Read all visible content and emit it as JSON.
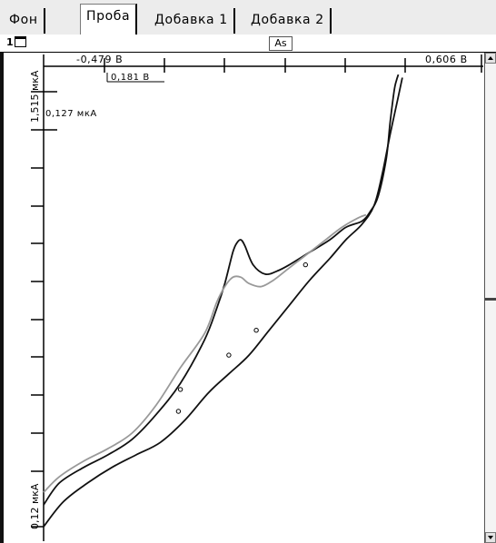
{
  "tabs": [
    {
      "label": "Фон",
      "active": false
    },
    {
      "label": "Проба",
      "active": true
    },
    {
      "label": "Добавка 1",
      "active": false
    },
    {
      "label": "Добавка 2",
      "active": false
    }
  ],
  "toolbar": {
    "zoom_label": "1",
    "element": "As"
  },
  "axis": {
    "x_start_label": "-0,479 В",
    "x_end_label": "0,606 В",
    "x_cursor_label": "0,181 В",
    "y_top_label": "1,515 мкА",
    "y_bottom_label": "0,12 мкА",
    "y_cursor_label": "0,127 мкА"
  },
  "chart_data": {
    "type": "line",
    "title": "",
    "x_unit": "В",
    "y_unit": "мкА",
    "xlim": [
      -0.479,
      0.606
    ],
    "ylim": [
      0.12,
      1.515
    ],
    "cursor": {
      "x": 0.181,
      "y_step": 0.127
    },
    "grid": false,
    "series": [
      {
        "color": "#111111",
        "x": [
          -0.479,
          -0.44,
          -0.38,
          -0.32,
          -0.26,
          -0.2,
          -0.14,
          -0.08,
          -0.05,
          -0.03,
          -0.01,
          0.0,
          0.01,
          0.02,
          0.04,
          0.07,
          0.1,
          0.13,
          0.18,
          0.23,
          0.27,
          0.31,
          0.33,
          0.35,
          0.37,
          0.38,
          0.39,
          0.395,
          0.4
        ],
        "y": [
          0.19,
          0.26,
          0.31,
          0.35,
          0.4,
          0.48,
          0.58,
          0.72,
          0.82,
          0.9,
          1.0,
          1.03,
          1.04,
          1.02,
          0.96,
          0.93,
          0.94,
          0.96,
          1.0,
          1.04,
          1.08,
          1.1,
          1.13,
          1.18,
          1.3,
          1.42,
          1.52,
          1.55,
          1.57
        ]
      },
      {
        "color": "#999999",
        "x": [
          -0.479,
          -0.44,
          -0.38,
          -0.32,
          -0.26,
          -0.2,
          -0.14,
          -0.08,
          -0.05,
          -0.03,
          -0.01,
          0.01,
          0.03,
          0.06,
          0.09,
          0.12,
          0.15,
          0.18,
          0.22,
          0.26,
          0.3,
          0.32
        ],
        "y": [
          0.23,
          0.28,
          0.33,
          0.37,
          0.42,
          0.51,
          0.63,
          0.74,
          0.84,
          0.89,
          0.92,
          0.92,
          0.9,
          0.89,
          0.91,
          0.94,
          0.97,
          1.0,
          1.04,
          1.08,
          1.11,
          1.12
        ]
      },
      {
        "color": "#111111",
        "x": [
          -0.479,
          -0.43,
          -0.37,
          -0.31,
          -0.25,
          -0.19,
          -0.13,
          -0.07,
          -0.02,
          0.03,
          0.08,
          0.13,
          0.18,
          0.23,
          0.27,
          0.31,
          0.34,
          0.36,
          0.38,
          0.4,
          0.41
        ],
        "y": [
          0.12,
          0.2,
          0.26,
          0.31,
          0.35,
          0.39,
          0.46,
          0.55,
          0.61,
          0.67,
          0.75,
          0.83,
          0.91,
          0.98,
          1.04,
          1.09,
          1.15,
          1.25,
          1.38,
          1.5,
          1.56
        ]
      }
    ],
    "markers": [
      {
        "x": -0.145,
        "y": 0.49
      },
      {
        "x": -0.14,
        "y": 0.56
      },
      {
        "x": -0.02,
        "y": 0.67
      },
      {
        "x": 0.048,
        "y": 0.75
      },
      {
        "x": 0.17,
        "y": 0.96
      }
    ]
  },
  "colors": {
    "tab_bar": "#ececec",
    "curve_dark": "#111111",
    "curve_light": "#999999"
  }
}
